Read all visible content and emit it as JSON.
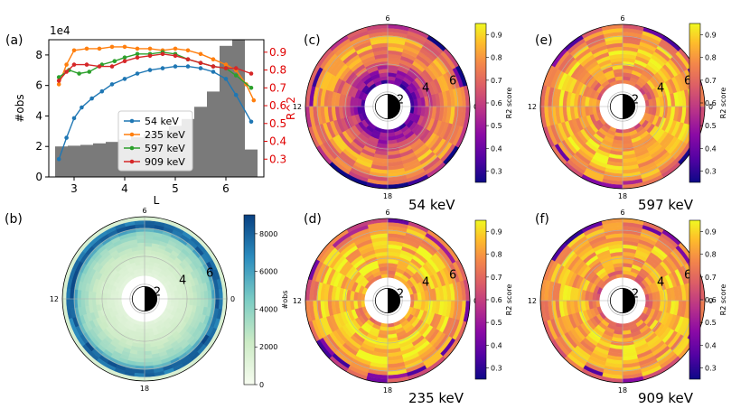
{
  "figure": {
    "panel_labels": [
      "(a)",
      "(b)",
      "(c)",
      "(d)",
      "(e)",
      "(f)"
    ]
  },
  "colors": {
    "hist": "#7a7a7a",
    "54 keV": "#1f77b4",
    "235 keV": "#ff7f0e",
    "597 keV": "#2ca02c",
    "909 keV": "#d62728",
    "r2_axis": "#e00000"
  },
  "chart_data": [
    {
      "id": "a",
      "type": "bar+line",
      "title": "",
      "xlabel": "L",
      "ylabel_left": "#obs",
      "ylabel_right": "R^2",
      "exponent_label": "1e4",
      "xlim": [
        2.5,
        6.75
      ],
      "ylim_left": [
        0,
        9
      ],
      "ylim_right": [
        0.2,
        0.97
      ],
      "xticks": [
        3,
        4,
        5,
        6
      ],
      "yticks_left": [
        0,
        2,
        4,
        6,
        8
      ],
      "yticks_right": [
        0.3,
        0.4,
        0.5,
        0.6,
        0.7,
        0.8,
        0.9
      ],
      "histogram": {
        "bin_centers": [
          2.75,
          3.0,
          3.25,
          3.5,
          3.75,
          4.0,
          4.25,
          4.5,
          4.75,
          5.0,
          5.25,
          5.5,
          5.75,
          6.0,
          6.25,
          6.5
        ],
        "values": [
          2.0,
          2.05,
          2.1,
          2.2,
          2.3,
          2.45,
          2.6,
          2.8,
          3.05,
          3.35,
          3.8,
          4.6,
          5.6,
          8.6,
          9.0,
          1.8
        ]
      },
      "series": [
        {
          "name": "54 keV",
          "x": [
            2.7,
            2.85,
            3.0,
            3.15,
            3.35,
            3.55,
            3.75,
            4.0,
            4.25,
            4.5,
            4.75,
            5.0,
            5.25,
            5.5,
            5.75,
            6.0,
            6.2,
            6.5
          ],
          "values": [
            0.3,
            0.42,
            0.53,
            0.59,
            0.64,
            0.68,
            0.72,
            0.75,
            0.78,
            0.8,
            0.81,
            0.82,
            0.82,
            0.81,
            0.79,
            0.75,
            0.66,
            0.51
          ]
        },
        {
          "name": "235 keV",
          "x": [
            2.7,
            2.85,
            3.0,
            3.25,
            3.5,
            3.75,
            4.0,
            4.25,
            4.5,
            4.75,
            5.0,
            5.25,
            5.5,
            5.75,
            6.0,
            6.2,
            6.4,
            6.55
          ],
          "values": [
            0.72,
            0.83,
            0.91,
            0.92,
            0.92,
            0.93,
            0.93,
            0.92,
            0.92,
            0.91,
            0.92,
            0.91,
            0.89,
            0.86,
            0.83,
            0.8,
            0.72,
            0.63
          ]
        },
        {
          "name": "597 keV",
          "x": [
            2.7,
            2.9,
            3.1,
            3.3,
            3.55,
            3.8,
            4.0,
            4.25,
            4.5,
            4.75,
            5.0,
            5.25,
            5.5,
            5.75,
            6.0,
            6.2,
            6.5
          ],
          "values": [
            0.76,
            0.8,
            0.78,
            0.79,
            0.83,
            0.85,
            0.87,
            0.89,
            0.89,
            0.9,
            0.89,
            0.86,
            0.84,
            0.82,
            0.81,
            0.77,
            0.7
          ]
        },
        {
          "name": "909 keV",
          "x": [
            2.7,
            2.85,
            3.0,
            3.25,
            3.5,
            3.75,
            4.0,
            4.25,
            4.5,
            4.75,
            5.0,
            5.25,
            5.5,
            5.75,
            6.0,
            6.2,
            6.5
          ],
          "values": [
            0.74,
            0.79,
            0.83,
            0.83,
            0.82,
            0.82,
            0.85,
            0.87,
            0.88,
            0.89,
            0.88,
            0.86,
            0.84,
            0.82,
            0.81,
            0.81,
            0.78
          ]
        }
      ],
      "legend": {
        "placement": "center",
        "entries": [
          "54 keV",
          "235 keV",
          "597 keV",
          "909 keV"
        ]
      }
    },
    {
      "id": "b",
      "type": "polar-heatmap",
      "quantity": "#obs",
      "mlt_labels": [
        "6",
        "12",
        "18",
        "0"
      ],
      "radial_labels": [
        "2",
        "4",
        "6"
      ],
      "colorbar": {
        "label": "#obs",
        "ticks": [
          0,
          2000,
          4000,
          6000,
          8000
        ],
        "range": [
          0,
          9000
        ]
      },
      "radial_profile": {
        "L": [
          2.6,
          3.0,
          3.5,
          4.0,
          4.5,
          5.0,
          5.5,
          5.8,
          6.1,
          6.4,
          6.7
        ],
        "value": [
          1000,
          1300,
          1600,
          1900,
          2400,
          3000,
          3600,
          4200,
          7800,
          8700,
          1600
        ]
      }
    },
    {
      "id": "c",
      "type": "polar-heatmap",
      "quantity": "R2 score",
      "energy": "54 keV",
      "mlt_labels": [
        "6",
        "12",
        "18",
        "0"
      ],
      "radial_labels": [
        "2",
        "4",
        "6"
      ],
      "colorbar": {
        "label": "R2 score",
        "ticks": [
          0.3,
          0.4,
          0.5,
          0.6,
          0.7,
          0.8,
          0.9
        ],
        "range": [
          0.25,
          0.95
        ]
      },
      "radial_profile": {
        "L": [
          2.6,
          3.0,
          3.5,
          4.0,
          4.5,
          5.0,
          5.5,
          6.0,
          6.5,
          6.8
        ],
        "value": [
          0.35,
          0.45,
          0.55,
          0.65,
          0.72,
          0.78,
          0.8,
          0.78,
          0.7,
          0.55
        ]
      }
    },
    {
      "id": "d",
      "type": "polar-heatmap",
      "quantity": "R2 score",
      "energy": "235 keV",
      "mlt_labels": [
        "6",
        "12",
        "18",
        "0"
      ],
      "radial_labels": [
        "2",
        "4",
        "6"
      ],
      "colorbar": {
        "label": "R2 score",
        "ticks": [
          0.3,
          0.4,
          0.5,
          0.6,
          0.7,
          0.8,
          0.9
        ],
        "range": [
          0.25,
          0.95
        ]
      },
      "radial_profile": {
        "L": [
          2.6,
          3.0,
          3.5,
          4.0,
          4.5,
          5.0,
          5.5,
          6.0,
          6.5,
          6.8
        ],
        "value": [
          0.78,
          0.82,
          0.86,
          0.88,
          0.88,
          0.87,
          0.86,
          0.84,
          0.78,
          0.65
        ]
      }
    },
    {
      "id": "e",
      "type": "polar-heatmap",
      "quantity": "R2 score",
      "energy": "597 keV",
      "mlt_labels": [
        "6",
        "12",
        "18",
        "0"
      ],
      "radial_labels": [
        "2",
        "4",
        "6"
      ],
      "colorbar": {
        "label": "R2 score",
        "ticks": [
          0.3,
          0.4,
          0.5,
          0.6,
          0.7,
          0.8,
          0.9
        ],
        "range": [
          0.25,
          0.95
        ]
      },
      "radial_profile": {
        "L": [
          2.6,
          3.0,
          3.5,
          4.0,
          4.5,
          5.0,
          5.5,
          6.0,
          6.5,
          6.8
        ],
        "value": [
          0.7,
          0.74,
          0.8,
          0.85,
          0.86,
          0.86,
          0.84,
          0.82,
          0.78,
          0.68
        ]
      }
    },
    {
      "id": "f",
      "type": "polar-heatmap",
      "quantity": "R2 score",
      "energy": "909 keV",
      "mlt_labels": [
        "6",
        "12",
        "18",
        "0"
      ],
      "radial_labels": [
        "2",
        "4",
        "6"
      ],
      "colorbar": {
        "label": "R2 score",
        "ticks": [
          0.3,
          0.4,
          0.5,
          0.6,
          0.7,
          0.8,
          0.9
        ],
        "range": [
          0.25,
          0.95
        ]
      },
      "radial_profile": {
        "L": [
          2.6,
          3.0,
          3.5,
          4.0,
          4.5,
          5.0,
          5.5,
          6.0,
          6.5,
          6.8
        ],
        "value": [
          0.66,
          0.76,
          0.82,
          0.84,
          0.85,
          0.85,
          0.84,
          0.82,
          0.8,
          0.7
        ]
      }
    }
  ]
}
